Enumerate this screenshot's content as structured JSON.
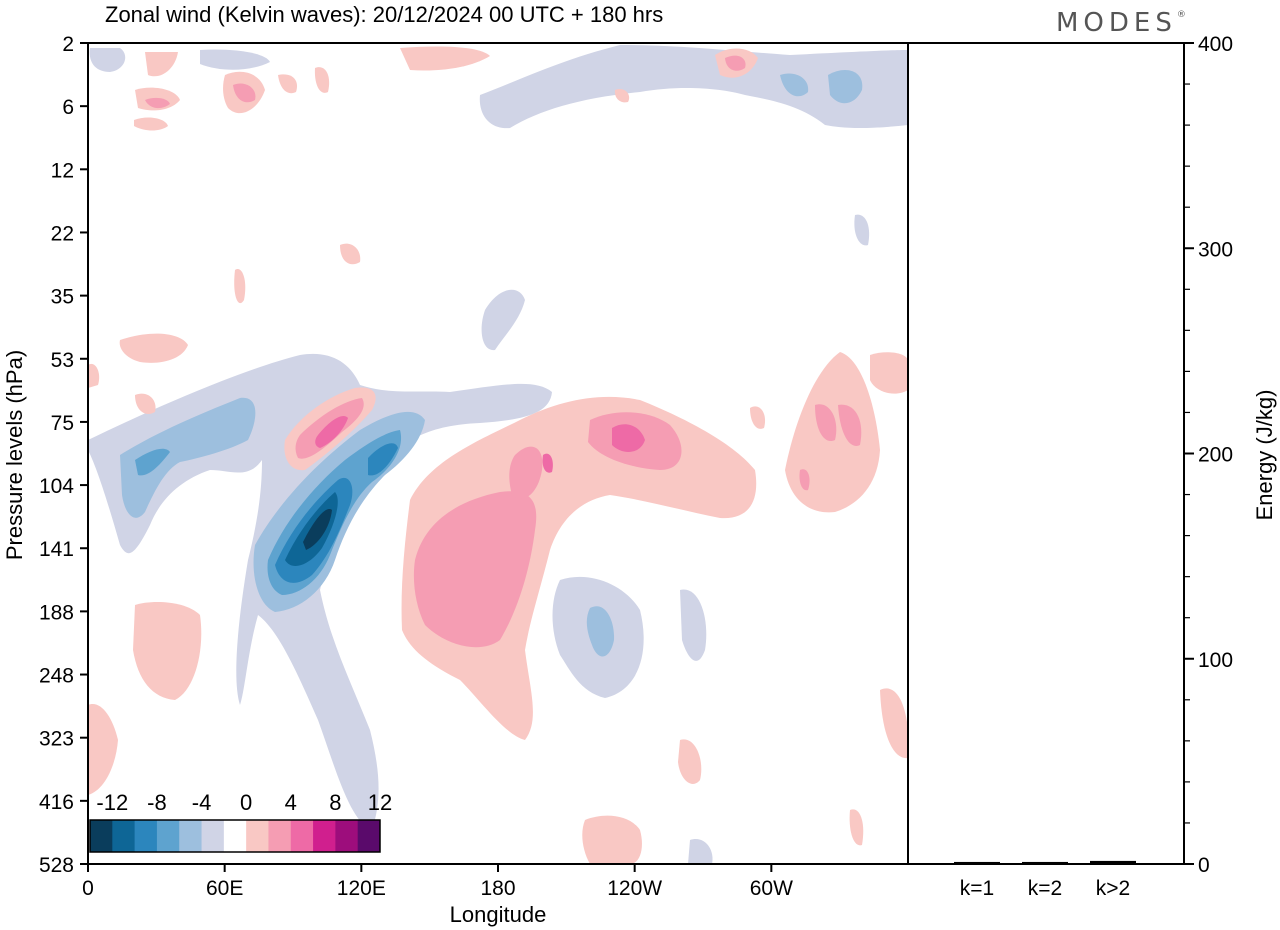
{
  "logo": "MODES",
  "chart_data": [
    {
      "type": "heatmap",
      "title": "Zonal wind (Kelvin waves):  20/12/2024  00 UTC  + 180 hrs",
      "xlabel": "Longitude",
      "ylabel": "Pressure levels (hPa)",
      "x_ticks": [
        "0",
        "60E",
        "120E",
        "180",
        "120W",
        "60W"
      ],
      "y_ticks": [
        "2",
        "6",
        "12",
        "22",
        "35",
        "53",
        "75",
        "104",
        "141",
        "188",
        "248",
        "323",
        "416",
        "528"
      ],
      "colorbar": {
        "labels": [
          "-12",
          "-8",
          "-4",
          "0",
          "4",
          "8",
          "12"
        ],
        "colors": [
          "#0a3d5c",
          "#0e6696",
          "#2c86bd",
          "#5ea3cf",
          "#9dbfde",
          "#d0d4e6",
          "#ffffff",
          "#f9c8c4",
          "#f59db3",
          "#ee6aa6",
          "#d01f8e",
          "#9d0d7c",
          "#5a0a6b"
        ]
      }
    },
    {
      "type": "bar",
      "categories": [
        "k=1",
        "k=2",
        "k>2"
      ],
      "values": [
        1,
        1,
        1.5
      ],
      "ylabel": "Energy (J/kg)",
      "y_ticks": [
        "0",
        "100",
        "200",
        "300",
        "400"
      ],
      "ylim": [
        0,
        400
      ]
    }
  ]
}
